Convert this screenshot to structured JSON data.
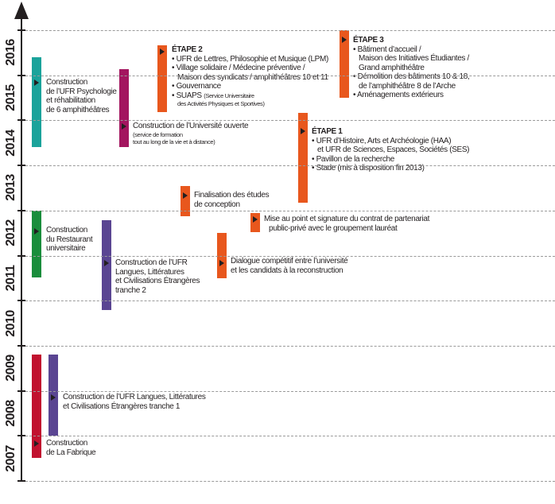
{
  "years": [
    "2016",
    "2015",
    "2014",
    "2013",
    "2012",
    "2011",
    "2010",
    "2009",
    "2008",
    "2007"
  ],
  "colors": {
    "teal": "#1ba39b",
    "magenta": "#a3155f",
    "green": "#1a8d3c",
    "purple": "#5a4592",
    "red": "#c1122f",
    "orange": "#e8571d"
  },
  "events": {
    "psychologie": [
      "Construction",
      "de l’UFR Psychologie",
      "et réhabilitation",
      "de 6 amphithéâtres"
    ],
    "universite_ouverte": {
      "title": "Construction de l’Université ouverte",
      "note": [
        "(service de formation",
        "tout au long de la vie et à distance)"
      ]
    },
    "restaurant": [
      "Construction",
      "du Restaurant",
      "universitaire"
    ],
    "llce_tranche2": [
      "Construction de l’UFR",
      "Langues, Littératures",
      "et Civilisations Étrangères",
      "tranche 2"
    ],
    "llce_tranche1": [
      "Construction de l’UFR Langues, Littératures",
      "et Civilisations Étrangères  tranche 1"
    ],
    "fabrique": [
      "Construction",
      "de La Fabrique"
    ],
    "finalisation": [
      "Finalisation des études",
      "de conception"
    ],
    "mise_au_point": [
      "Mise au point et signature du contrat de partenariat",
      "public-privé avec le groupement lauréat"
    ],
    "dialogue": [
      "Dialogue compétitif entre l’université",
      "et les candidats à la reconstruction"
    ],
    "etape1": {
      "title": "ÉTAPE 1",
      "items": [
        "UFR d’Histoire, Arts et Archéologie (HAA)",
        "et UFR de Sciences, Espaces, Sociétés (SES)",
        "Pavillon de la recherche",
        "Stade (mis à disposition fin 2013)"
      ]
    },
    "etape2": {
      "title": "ÉTAPE 2",
      "items": [
        "UFR de Lettres, Philosophie et Musique (LPM)",
        "Village solidaire / Médecine préventive /",
        "Maison des syndicats / amphithéâtres 10 et 11",
        "Gouvernance",
        "SUAPS"
      ],
      "suaps_note": [
        "(Service Universitaire",
        "des Activités Physiques et Sportives)"
      ]
    },
    "etape3": {
      "title": "ÉTAPE 3",
      "items": [
        "Bâtiment d’accueil /",
        "Maison des Initiatives Étudiantes /",
        "Grand amphithéâtre",
        "Démolition des bâtiments 10 & 18,",
        "de l’amphithéâtre 8 de l’Arche",
        "Aménagements extérieurs"
      ]
    }
  }
}
